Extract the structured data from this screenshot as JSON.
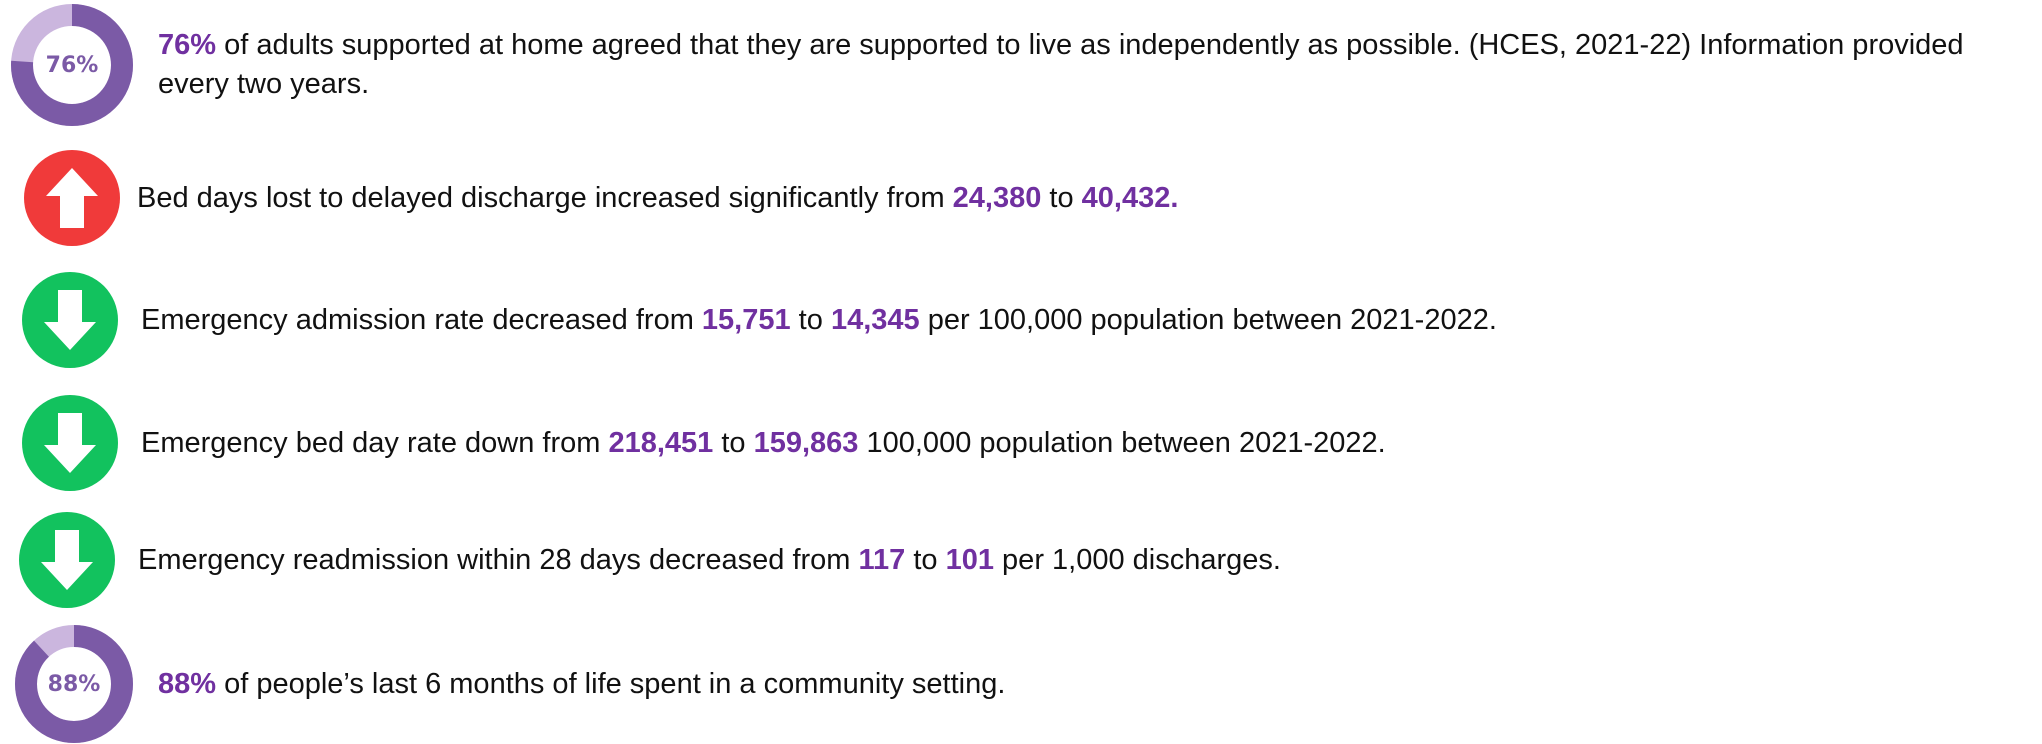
{
  "items": [
    {
      "icon": "donut",
      "donut_value": 76,
      "donut_label": "76%",
      "color": "#7b5aa6",
      "track_color": "#cbb6de",
      "text": [
        {
          "text": "76%",
          "bold": true
        },
        {
          "text": " of adults supported at home agreed that they are supported to live as independently as possible. (HCES, 2021-22) Information provided every two years."
        }
      ]
    },
    {
      "icon": "up",
      "color": "#f03a3a",
      "text": [
        {
          "text": "Bed days lost to delayed discharge increased significantly from "
        },
        {
          "text": "24,380",
          "bold": true
        },
        {
          "text": " to "
        },
        {
          "text": "40,432.",
          "bold": true
        }
      ]
    },
    {
      "icon": "down",
      "color": "#12c25e",
      "text": [
        {
          "text": "Emergency admission rate decreased from "
        },
        {
          "text": "15,751",
          "bold": true
        },
        {
          "text": " to "
        },
        {
          "text": "14,345",
          "bold": true
        },
        {
          "text": " per 100,000 population between 2021-2022."
        }
      ]
    },
    {
      "icon": "down",
      "color": "#12c25e",
      "text": [
        {
          "text": "Emergency bed day rate down from "
        },
        {
          "text": "218,451",
          "bold": true
        },
        {
          "text": " to "
        },
        {
          "text": "159,863",
          "bold": true
        },
        {
          "text": " 100,000 population between 2021-2022."
        }
      ]
    },
    {
      "icon": "down",
      "color": "#12c25e",
      "text": [
        {
          "text": "Emergency readmission within 28 days decreased from "
        },
        {
          "text": "117",
          "bold": true
        },
        {
          "text": " to "
        },
        {
          "text": "101",
          "bold": true
        },
        {
          "text": " per 1,000 discharges."
        }
      ]
    },
    {
      "icon": "donut",
      "donut_value": 88,
      "donut_label": "88%",
      "color": "#7b5aa6",
      "track_color": "#cbb6de",
      "text": [
        {
          "text": "88%",
          "bold": true
        },
        {
          "text": " of people’s last 6 months of life spent in a community setting."
        }
      ]
    }
  ]
}
